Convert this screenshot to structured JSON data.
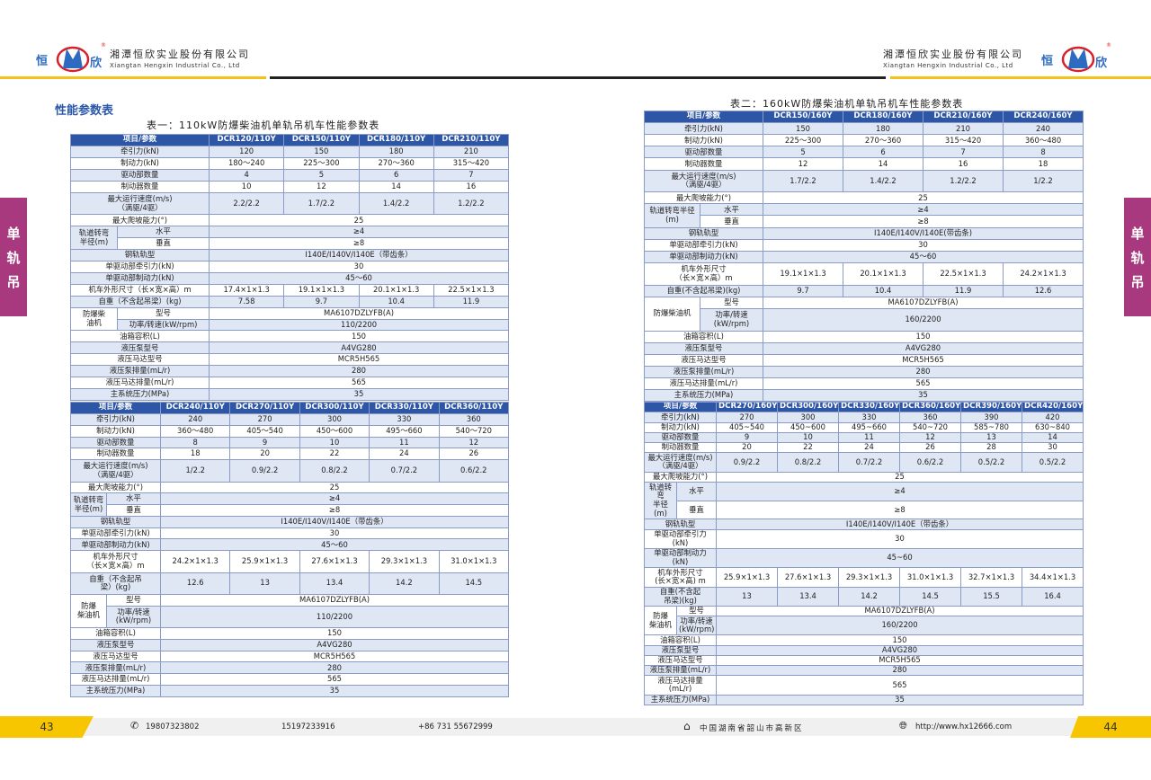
{
  "header": {
    "company_cn": "湘潭恒欣实业股份有限公司",
    "company_en": "Xiangtan Hengxin Industrial Co., Ltd",
    "logo_text": [
      "恒",
      "欣"
    ]
  },
  "section_title": "性能参数表",
  "side_tab": [
    "单",
    "轨",
    "吊"
  ],
  "colors": {
    "header_blue": "#2d56a6",
    "row_tint": "#dfe6f4",
    "side_tab": "#a8397f",
    "accent_yellow": "#f7c600"
  },
  "tables": [
    {
      "caption": "表一：110kW防爆柴油机单轨吊机车性能参数表",
      "head": "项目/参数",
      "columns": [
        "DCR120/110Y",
        "DCR150/110Y",
        "DCR180/110Y",
        "DCR210/110Y"
      ],
      "rows": [
        {
          "label": "牵引力(kN)",
          "values": [
            "120",
            "150",
            "180",
            "210"
          ]
        },
        {
          "label": "制动力(kN)",
          "values": [
            "180～240",
            "225～300",
            "270～360",
            "315～420"
          ]
        },
        {
          "label": "驱动部数量",
          "values": [
            "4",
            "5",
            "6",
            "7"
          ]
        },
        {
          "label": "制动器数量",
          "values": [
            "10",
            "12",
            "14",
            "16"
          ]
        },
        {
          "label": "最大运行速度(m/s)\n（满驱/4驱）",
          "values": [
            "2.2/2.2",
            "1.7/2.2",
            "1.4/2.2",
            "1.2/2.2"
          ]
        },
        {
          "label": "最大爬坡能力(°)",
          "value": "25"
        },
        {
          "group": "轨道转弯\n半径(m)",
          "label": "水平",
          "value": "≥4"
        },
        {
          "group": "轨道转弯\n半径(m)",
          "label": "垂直",
          "value": "≥8"
        },
        {
          "label": "钢轨轨型",
          "value": "I140E/I140V/I140E（带齿条）"
        },
        {
          "label": "单驱动部牵引力(kN)",
          "value": "30"
        },
        {
          "label": "单驱动部制动力(kN)",
          "value": "45～60"
        },
        {
          "label": "机车外形尺寸（长×宽×高）m",
          "values": [
            "17.4×1×1.3",
            "19.1×1×1.3",
            "20.1×1×1.3",
            "22.5×1×1.3"
          ]
        },
        {
          "label": "自重（不含起吊梁）(kg)",
          "values": [
            "7.58",
            "9.7",
            "10.4",
            "11.9"
          ]
        },
        {
          "group": "防爆柴\n油机",
          "label": "型号",
          "value": "MA6107DZLYFB(A)"
        },
        {
          "group": "防爆柴\n油机",
          "label": "功率/转速(kW/rpm)",
          "value": "110/2200"
        },
        {
          "label": "油箱容积(L)",
          "value": "150"
        },
        {
          "label": "液压泵型号",
          "value": "A4VG280"
        },
        {
          "label": "液压马达型号",
          "value": "MCR5H565"
        },
        {
          "label": "液压泵排量(mL/r)",
          "value": "280"
        },
        {
          "label": "液压马达排量(mL/r)",
          "value": "565"
        },
        {
          "label": "主系统压力(MPa)",
          "value": "35"
        }
      ]
    },
    {
      "caption": "",
      "head": "项目/参数",
      "columns": [
        "DCR240/110Y",
        "DCR270/110Y",
        "DCR300/110Y",
        "DCR330/110Y",
        "DCR360/110Y"
      ],
      "rows": [
        {
          "label": "牵引力(kN)",
          "values": [
            "240",
            "270",
            "300",
            "330",
            "360"
          ]
        },
        {
          "label": "制动力(kN)",
          "values": [
            "360～480",
            "405～540",
            "450～600",
            "495～660",
            "540～720"
          ]
        },
        {
          "label": "驱动部数量",
          "values": [
            "8",
            "9",
            "10",
            "11",
            "12"
          ]
        },
        {
          "label": "制动器数量",
          "values": [
            "18",
            "20",
            "22",
            "24",
            "26"
          ]
        },
        {
          "label": "最大运行速度(m/s)\n（满驱/4驱）",
          "values": [
            "1/2.2",
            "0.9/2.2",
            "0.8/2.2",
            "0.7/2.2",
            "0.6/2.2"
          ]
        },
        {
          "label": "最大爬坡能力(°)",
          "value": "25"
        },
        {
          "group": "轨道转弯\n半径(m)",
          "label": "水平",
          "value": "≥4"
        },
        {
          "group": "轨道转弯\n半径(m)",
          "label": "垂直",
          "value": "≥8"
        },
        {
          "label": "钢轨轨型",
          "value": "I140E/I140V/I140E（带齿条）"
        },
        {
          "label": "单驱动部牵引力(kN)",
          "value": "30"
        },
        {
          "label": "单驱动部制动力(kN)",
          "value": "45～60"
        },
        {
          "label": "机车外形尺寸\n（长×宽×高）m",
          "values": [
            "24.2×1×1.3",
            "25.9×1×1.3",
            "27.6×1×1.3",
            "29.3×1×1.3",
            "31.0×1×1.3"
          ]
        },
        {
          "label": "自重（不含起吊\n梁）(kg)",
          "values": [
            "12.6",
            "13",
            "13.4",
            "14.2",
            "14.5"
          ]
        },
        {
          "group": "防爆\n柴油机",
          "label": "型号",
          "value": "MA6107DZLYFB(A)"
        },
        {
          "group": "防爆\n柴油机",
          "label": "功率/转速\n(kW/rpm)",
          "value": "110/2200"
        },
        {
          "label": "油箱容积(L)",
          "value": "150"
        },
        {
          "label": "液压泵型号",
          "value": "A4VG280"
        },
        {
          "label": "液压马达型号",
          "value": "MCR5H565"
        },
        {
          "label": "液压泵排量(mL/r)",
          "value": "280"
        },
        {
          "label": "液压马达排量(mL/r)",
          "value": "565"
        },
        {
          "label": "主系统压力(MPa)",
          "value": "35"
        }
      ]
    },
    {
      "caption": "表二：160kW防爆柴油机单轨吊机车性能参数表",
      "head": "项目/参数",
      "columns": [
        "DCR150/160Y",
        "DCR180/160Y",
        "DCR210/160Y",
        "DCR240/160Y"
      ],
      "rows": [
        {
          "label": "牵引力(kN)",
          "values": [
            "150",
            "180",
            "210",
            "240"
          ]
        },
        {
          "label": "制动力(kN)",
          "values": [
            "225～300",
            "270～360",
            "315～420",
            "360～480"
          ]
        },
        {
          "label": "驱动部数量",
          "values": [
            "5",
            "6",
            "7",
            "8"
          ]
        },
        {
          "label": "制动器数量",
          "values": [
            "12",
            "14",
            "16",
            "18"
          ]
        },
        {
          "label": "最大运行速度(m/s)\n（满驱/4驱）",
          "values": [
            "1.7/2.2",
            "1.4/2.2",
            "1.2/2.2",
            "1/2.2"
          ]
        },
        {
          "label": "最大爬坡能力(°)",
          "value": "25"
        },
        {
          "group": "轨道转弯半径\n(m)",
          "label": "水平",
          "value": "≥4"
        },
        {
          "group": "轨道转弯半径\n(m)",
          "label": "垂直",
          "value": "≥8"
        },
        {
          "label": "钢轨轨型",
          "value": "I140E/I140V/I140E(带齿条)"
        },
        {
          "label": "单驱动部牵引力(kN)",
          "value": "30"
        },
        {
          "label": "单驱动部制动力(kN)",
          "value": "45～60"
        },
        {
          "label": "机车外形尺寸\n（长×宽×高）m",
          "values": [
            "19.1×1×1.3",
            "20.1×1×1.3",
            "22.5×1×1.3",
            "24.2×1×1.3"
          ]
        },
        {
          "label": "自重(不含起吊梁)(kg)",
          "values": [
            "9.7",
            "10.4",
            "11.9",
            "12.6"
          ]
        },
        {
          "group": "防爆柴油机",
          "label": "型号",
          "value": "MA6107DZLYFB(A)"
        },
        {
          "group": "防爆柴油机",
          "label": "功率/转速\n(kW/rpm)",
          "value": "160/2200"
        },
        {
          "label": "油箱容积(L)",
          "value": "150"
        },
        {
          "label": "液压泵型号",
          "value": "A4VG280"
        },
        {
          "label": "液压马达型号",
          "value": "MCR5H565"
        },
        {
          "label": "液压泵排量(mL/r)",
          "value": "280"
        },
        {
          "label": "液压马达排量(mL/r)",
          "value": "565"
        },
        {
          "label": "主系统压力(MPa)",
          "value": "35"
        }
      ]
    },
    {
      "caption": "",
      "head": "项目/参数",
      "columns": [
        "DCR270/160Y",
        "DCR300/160Y",
        "DCR330/160Y",
        "DCR360/160Y",
        "DCR390/160Y",
        "DCR420/160Y"
      ],
      "rows": [
        {
          "label": "牵引力(kN)",
          "values": [
            "270",
            "300",
            "330",
            "360",
            "390",
            "420"
          ]
        },
        {
          "label": "制动力(kN)",
          "values": [
            "405~540",
            "450~600",
            "495~660",
            "540~720",
            "585~780",
            "630~840"
          ]
        },
        {
          "label": "驱动部数量",
          "values": [
            "9",
            "10",
            "11",
            "12",
            "13",
            "14"
          ]
        },
        {
          "label": "制动器数量",
          "values": [
            "20",
            "22",
            "24",
            "26",
            "28",
            "30"
          ]
        },
        {
          "label": "最大运行速度(m/s)\n（满驱/4驱）",
          "values": [
            "0.9/2.2",
            "0.8/2.2",
            "0.7/2.2",
            "0.6/2.2",
            "0.5/2.2",
            "0.5/2.2"
          ]
        },
        {
          "label": "最大爬坡能力(°)",
          "value": "25"
        },
        {
          "group": "轨道转弯\n半径(m)",
          "label": "水平",
          "value": "≥4"
        },
        {
          "group": "轨道转弯\n半径(m)",
          "label": "垂直",
          "value": "≥8"
        },
        {
          "label": "钢轨轨型",
          "value": "I140E/I140V/I140E（带齿条）"
        },
        {
          "label": "单驱动部牵引力\n(kN)",
          "value": "30"
        },
        {
          "label": "单驱动部制动力\n(kN)",
          "value": "45~60"
        },
        {
          "label": "机车外形尺寸\n(长×宽×高) m",
          "values": [
            "25.9×1×1.3",
            "27.6×1×1.3",
            "29.3×1×1.3",
            "31.0×1×1.3",
            "32.7×1×1.3",
            "34.4×1×1.3"
          ]
        },
        {
          "label": "自重(不含起\n吊梁)(kg)",
          "values": [
            "13",
            "13.4",
            "14.2",
            "14.5",
            "15.5",
            "16.4"
          ]
        },
        {
          "group": "防爆\n柴油机",
          "label": "型号",
          "value": "MA6107DZLYFB(A)"
        },
        {
          "group": "防爆\n柴油机",
          "label": "功率/转速\n(kW/rpm)",
          "value": "160/2200"
        },
        {
          "label": "油箱容积(L)",
          "value": "150"
        },
        {
          "label": "液压泵型号",
          "value": "A4VG280"
        },
        {
          "label": "液压马达型号",
          "value": "MCR5H565"
        },
        {
          "label": "液压泵排量(mL/r)",
          "value": "280"
        },
        {
          "label": "液压马达排量(mL/r)",
          "value": "565"
        },
        {
          "label": "主系统压力(MPa)",
          "value": "35"
        }
      ]
    }
  ],
  "footer": {
    "page_left": "43",
    "page_right": "44",
    "phone1": "19807323802",
    "phone2": "15197233916",
    "phone3": "+86  731  55672999",
    "address": "中国湖南省韶山市高新区",
    "website": "http://www.hx12666.com"
  }
}
